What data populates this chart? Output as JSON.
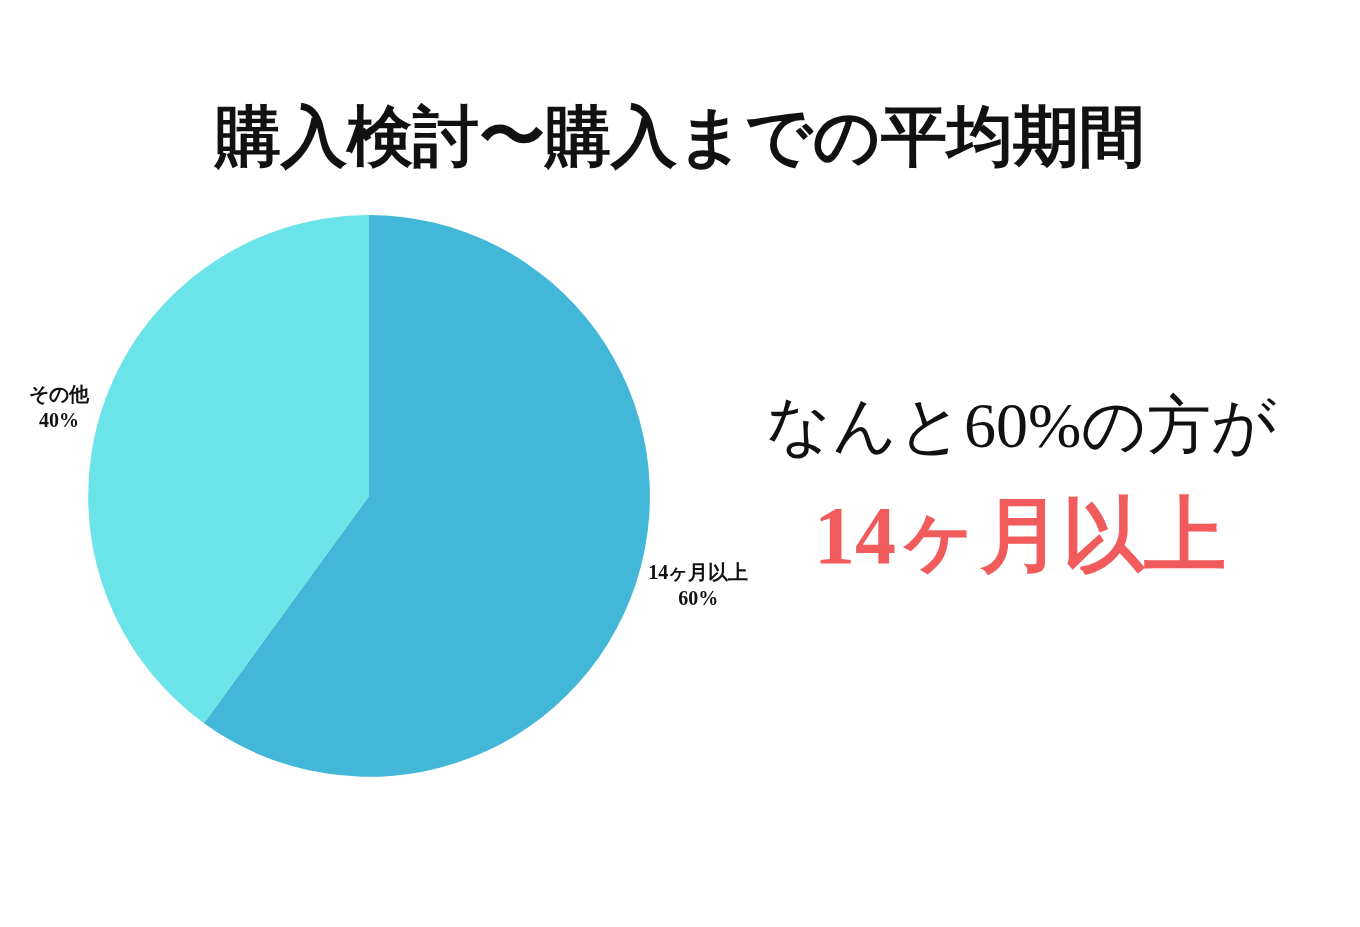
{
  "chart_data": {
    "type": "pie",
    "title": "購入検討〜購入までの平均期間",
    "categories": [
      "14ヶ月以上",
      "その他"
    ],
    "values": [
      60,
      40
    ],
    "colors": [
      "#43b7d7",
      "#6ae4e8"
    ],
    "value_labels": [
      "60%",
      "40%"
    ],
    "data_labels": true,
    "legend": false,
    "annotations": [
      "なんと60%の方が",
      "14ヶ月以上"
    ]
  }
}
